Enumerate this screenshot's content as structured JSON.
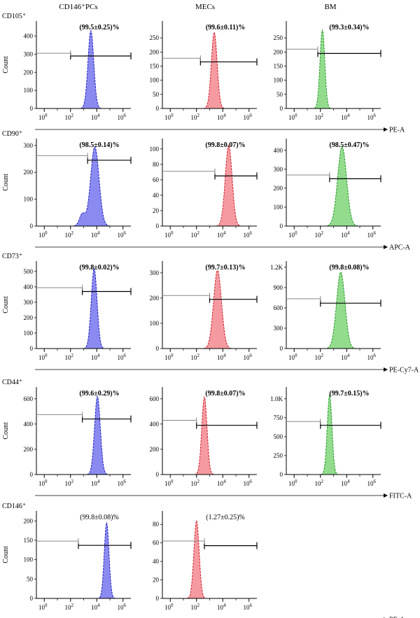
{
  "columns": [
    "CD146⁺PCs",
    "MECs",
    "BM"
  ],
  "ylabel": "Count",
  "colors": {
    "PCs": "#8a8af0",
    "MECs": "#f59aa0",
    "BM": "#93dc8e",
    "PCs_edge": "#1010b8",
    "MECs_edge": "#c80f1a",
    "BM_edge": "#139013"
  },
  "x_ticks": [
    "10",
    "10",
    "10",
    "10"
  ],
  "x_tick_exp": [
    "0",
    "2",
    "4",
    "6"
  ],
  "chart_data": [
    {
      "type": "histogram",
      "row": 0,
      "marker": "CD105⁺",
      "channel": "PE-A",
      "panels": [
        {
          "group": "PCs",
          "percent": "(99.5±0.25)%",
          "yticks": [
            "0",
            "100",
            "200",
            "300",
            "400"
          ],
          "ymax": 460,
          "peak_log": 3.55,
          "width": 0.22,
          "peak_height": 430,
          "bump": null,
          "gate_start_log": 2.0,
          "gate_y": 290,
          "gate_upper_y": 305
        },
        {
          "group": "MECs",
          "percent": "(99.6±0.11)%",
          "yticks": [
            "0",
            "50",
            "100",
            "150",
            "200",
            "250"
          ],
          "ymax": 295,
          "peak_log": 3.35,
          "width": 0.22,
          "peak_height": 270,
          "bump": null,
          "gate_start_log": 2.3,
          "gate_y": 165,
          "gate_upper_y": 178
        },
        {
          "group": "BM",
          "percent": "(99.3±0.34)%",
          "yticks": [
            "0",
            "50",
            "100",
            "150",
            "200",
            "250"
          ],
          "ymax": 295,
          "peak_log": 2.15,
          "width": 0.18,
          "peak_height": 280,
          "bump": null,
          "gate_start_log": 1.8,
          "gate_y": 195,
          "gate_upper_y": 210
        }
      ]
    },
    {
      "type": "histogram",
      "row": 1,
      "marker": "CD90⁺",
      "channel": "APC-A",
      "panels": [
        {
          "group": "PCs",
          "percent": "(98.5±0.14)%",
          "yticks": [
            "0",
            "100",
            "200",
            "300"
          ],
          "ymax": 310,
          "peak_log": 3.85,
          "width": 0.32,
          "peak_height": 295,
          "bump": [
            2.9,
            0.22,
            45
          ],
          "gate_start_log": 3.3,
          "gate_y": 245,
          "gate_upper_y": 262
        },
        {
          "group": "MECs",
          "percent": "(99.8±0.07)%",
          "yticks": [
            "0",
            "20",
            "40",
            "60",
            "80",
            "100"
          ],
          "ymax": 108,
          "peak_log": 4.45,
          "width": 0.26,
          "peak_height": 105,
          "bump": null,
          "gate_start_log": 3.4,
          "gate_y": 65,
          "gate_upper_y": 71
        },
        {
          "group": "BM",
          "percent": "(98.5±0.47)%",
          "yticks": [
            "0",
            "100",
            "200",
            "300",
            "400"
          ],
          "ymax": 440,
          "peak_log": 3.65,
          "width": 0.34,
          "peak_height": 420,
          "bump": null,
          "gate_start_log": 2.7,
          "gate_y": 250,
          "gate_upper_y": 270
        }
      ]
    },
    {
      "type": "histogram",
      "row": 2,
      "marker": "CD73⁺",
      "channel": "PE-Cy7-A",
      "panels": [
        {
          "group": "PCs",
          "percent": "(99.8±0.02)%",
          "yticks": [
            "0",
            "100",
            "200",
            "300",
            "400",
            "500"
          ],
          "ymax": 540,
          "peak_log": 3.8,
          "width": 0.22,
          "peak_height": 520,
          "bump": null,
          "gate_start_log": 2.9,
          "gate_y": 370,
          "gate_upper_y": 395
        },
        {
          "group": "MECs",
          "percent": "(99.7±0.13)%",
          "yticks": [
            "0",
            "100",
            "200",
            "300"
          ],
          "ymax": 330,
          "peak_log": 3.6,
          "width": 0.3,
          "peak_height": 310,
          "bump": null,
          "gate_start_log": 3.0,
          "gate_y": 195,
          "gate_upper_y": 210
        },
        {
          "group": "BM",
          "percent": "(99.8±0.08)%",
          "yticks": [
            "0",
            "300",
            "600",
            "900",
            "1.2K"
          ],
          "ymax": 1230,
          "peak_log": 3.55,
          "width": 0.32,
          "peak_height": 1130,
          "bump": null,
          "gate_start_log": 2.0,
          "gate_y": 670,
          "gate_upper_y": 735
        }
      ]
    },
    {
      "type": "histogram",
      "row": 3,
      "marker": "CD44⁺",
      "channel": "FITC-A",
      "panels": [
        {
          "group": "PCs",
          "percent": "(99.6±0.29)%",
          "yticks": [
            "0",
            "200",
            "400",
            "600"
          ],
          "ymax": 660,
          "peak_log": 4.05,
          "width": 0.22,
          "peak_height": 620,
          "bump": null,
          "gate_start_log": 2.9,
          "gate_y": 440,
          "gate_upper_y": 475
        },
        {
          "group": "MECs",
          "percent": "(99.8±0.07)%",
          "yticks": [
            "0",
            "200",
            "400",
            "600"
          ],
          "ymax": 660,
          "peak_log": 2.6,
          "width": 0.2,
          "peak_height": 615,
          "bump": null,
          "gate_start_log": 2.0,
          "gate_y": 390,
          "gate_upper_y": 430
        },
        {
          "group": "BM",
          "percent": "(99.7±0.15)%",
          "yticks": [
            "0",
            "250",
            "500",
            "750",
            "1.0K"
          ],
          "ymax": 1100,
          "peak_log": 2.7,
          "width": 0.18,
          "peak_height": 1050,
          "bump": null,
          "gate_start_log": 2.0,
          "gate_y": 650,
          "gate_upper_y": 700
        }
      ]
    },
    {
      "type": "histogram",
      "row": 4,
      "marker": "CD146⁺",
      "channel": "PE-A",
      "panels": [
        {
          "group": "PCs",
          "percent": "(99.8±0.08)%",
          "yticks": [
            "0",
            "50",
            "100",
            "150",
            "200"
          ],
          "ymax": 215,
          "peak_log": 4.75,
          "width": 0.18,
          "peak_height": 195,
          "bump": null,
          "gate_start_log": 2.6,
          "gate_y": 137,
          "gate_upper_y": 148
        },
        {
          "group": "MECs",
          "percent": "(1.27±0.25)%",
          "yticks": [
            "0",
            "20",
            "40",
            "60",
            "80"
          ],
          "ymax": 90,
          "peak_log": 2.0,
          "width": 0.2,
          "peak_height": 84,
          "bump": null,
          "gate_start_log": 2.6,
          "gate_y": 57,
          "gate_upper_y": 62
        }
      ]
    }
  ]
}
